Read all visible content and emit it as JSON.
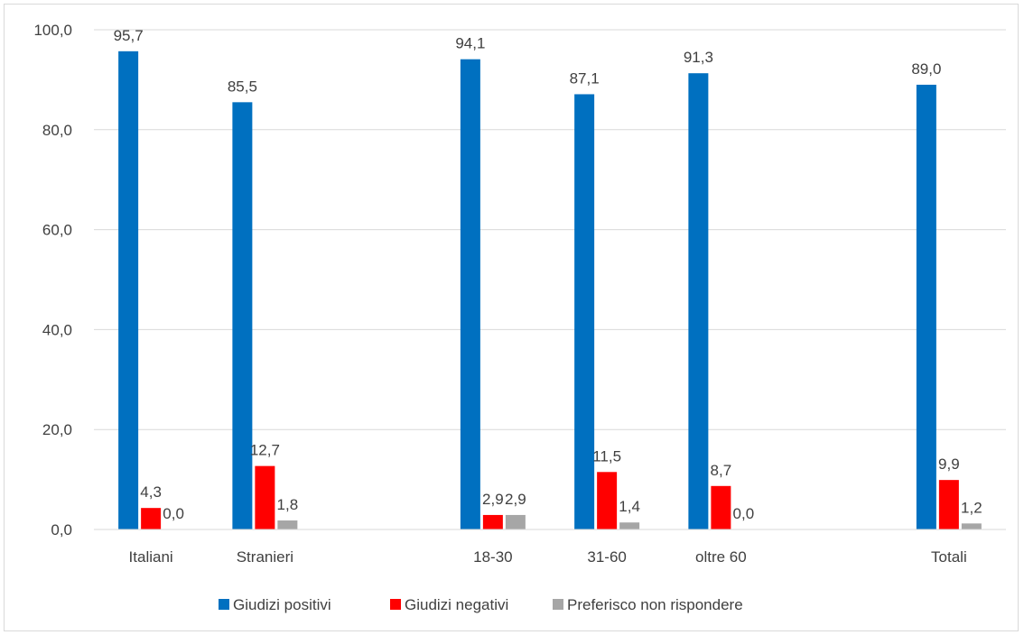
{
  "chart_data": {
    "type": "bar",
    "categories": [
      "Italiani",
      "Stranieri",
      "",
      "18-30",
      "31-60",
      "oltre 60",
      "",
      "Totali"
    ],
    "series": [
      {
        "name": "Giudizi positivi",
        "color": "#0070c0",
        "values": [
          95.7,
          85.5,
          null,
          94.1,
          87.1,
          91.3,
          null,
          89.0
        ],
        "labels": [
          "95,7",
          "85,5",
          "",
          "94,1",
          "87,1",
          "91,3",
          "",
          "89,0"
        ]
      },
      {
        "name": "Giudizi negativi",
        "color": "#ff0000",
        "values": [
          4.3,
          12.7,
          null,
          2.9,
          11.5,
          8.7,
          null,
          9.9
        ],
        "labels": [
          "4,3",
          "12,7",
          "",
          "2,9",
          "11,5",
          "8,7",
          "",
          "9,9"
        ]
      },
      {
        "name": "Preferisco non rispondere",
        "color": "#a6a6a6",
        "values": [
          0.0,
          1.8,
          null,
          2.9,
          1.4,
          0.0,
          null,
          1.2
        ],
        "labels": [
          "0,0",
          "1,8",
          "",
          "2,9",
          "1,4",
          "0,0",
          "",
          "1,2"
        ]
      }
    ],
    "ylim": [
      0,
      100
    ],
    "yticks": [
      "0,0",
      "20,0",
      "40,0",
      "60,0",
      "80,0",
      "100,0"
    ],
    "grid": true,
    "legend_position": "bottom",
    "gridline_color": "#d9d9d9"
  }
}
